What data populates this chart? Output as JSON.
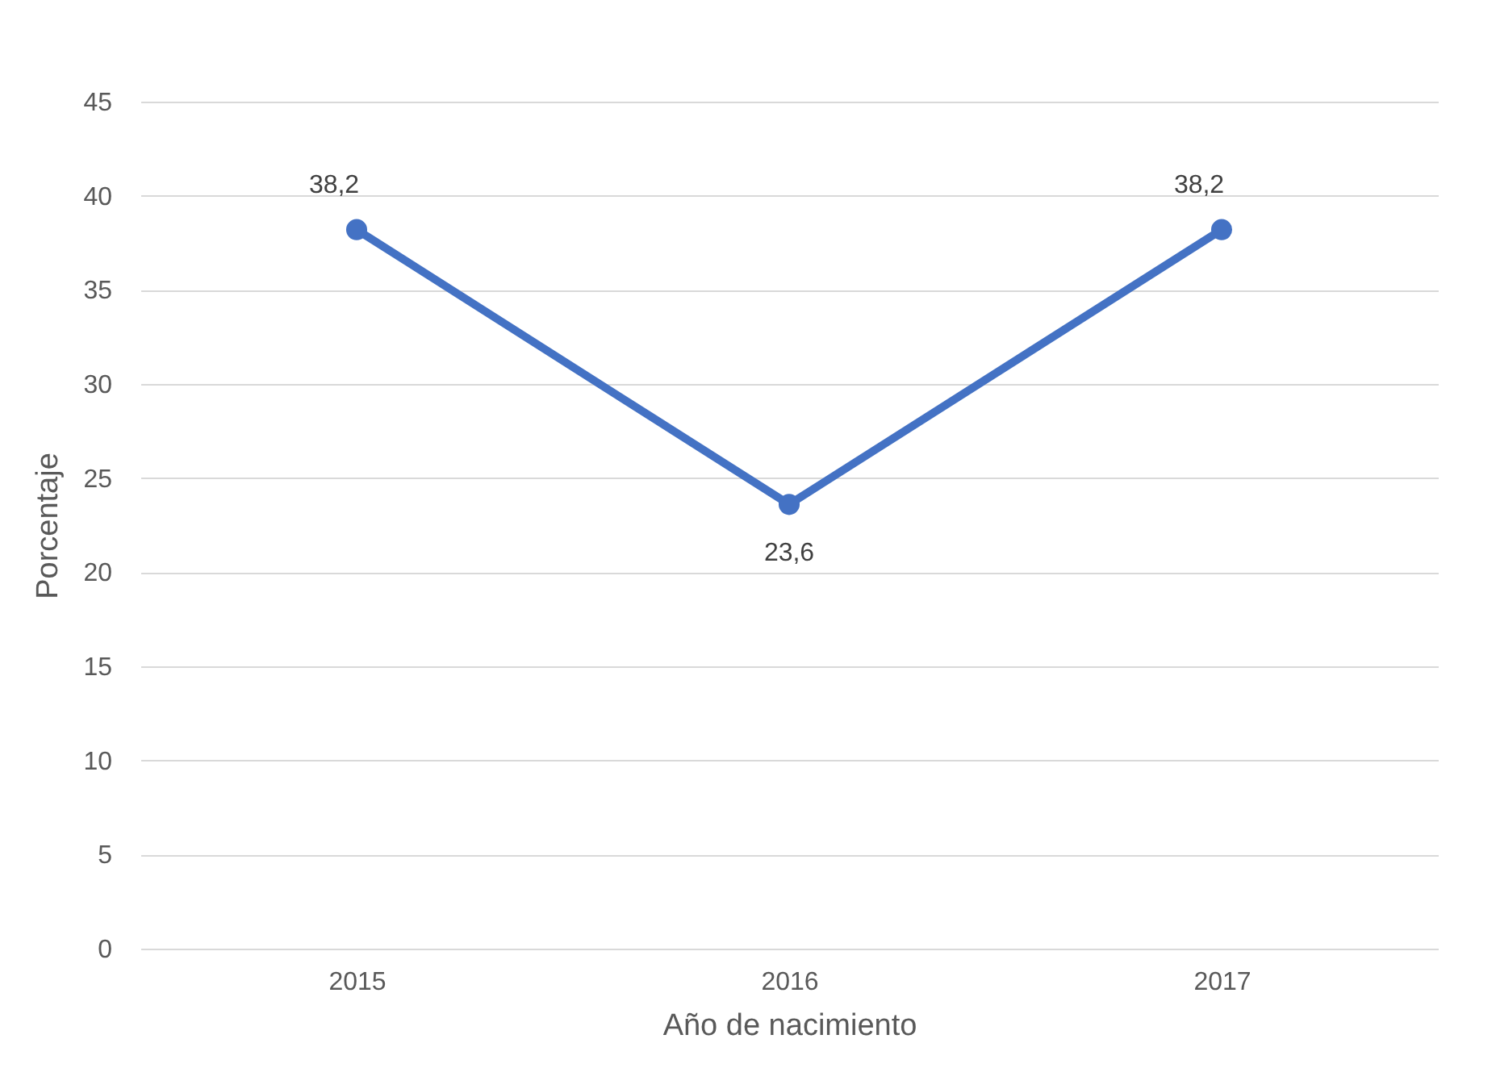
{
  "chart_data": {
    "type": "line",
    "xlabel": "Año de nacimiento",
    "ylabel": "Porcentaje",
    "categories": [
      "2015",
      "2016",
      "2017"
    ],
    "series": [
      {
        "color": "#4472c4",
        "values": [
          38.2,
          23.6,
          38.2
        ],
        "value_labels": [
          "38,2",
          "23,6",
          "38,2"
        ]
      }
    ],
    "ylim": [
      0,
      45
    ],
    "yticks": [
      0,
      5,
      10,
      15,
      20,
      25,
      30,
      35,
      40,
      45
    ],
    "grid": "y",
    "marker": "circle",
    "line_style": "solid"
  }
}
